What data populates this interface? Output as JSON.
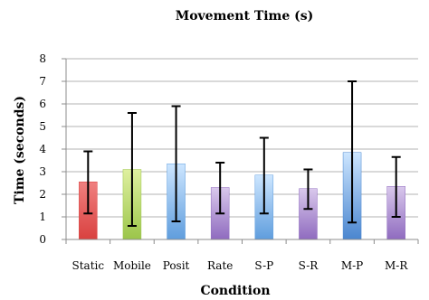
{
  "chart_data": {
    "type": "bar",
    "title": "Movement Time (s)",
    "xlabel": "Condition",
    "ylabel": "Time (seconds)",
    "ylim": [
      0,
      8
    ],
    "yticks": [
      0,
      1,
      2,
      3,
      4,
      5,
      6,
      7,
      8
    ],
    "grid": true,
    "categories": [
      "Static",
      "Mobile",
      "Posit",
      "Rate",
      "S-P",
      "S-R",
      "M-P",
      "M-R"
    ],
    "values": [
      2.55,
      3.1,
      3.35,
      2.3,
      2.85,
      2.25,
      3.85,
      2.35
    ],
    "error_low": [
      1.15,
      0.6,
      0.8,
      1.15,
      1.15,
      1.35,
      0.75,
      1.0
    ],
    "error_high": [
      3.9,
      5.6,
      5.9,
      3.4,
      4.5,
      3.1,
      7.0,
      3.65
    ],
    "colors": [
      [
        "#f08080",
        "#d9413f"
      ],
      [
        "#dff0a0",
        "#9bc54a"
      ],
      [
        "#cde6ff",
        "#5f9ddd"
      ],
      [
        "#d9c8ec",
        "#8f6bbf"
      ],
      [
        "#cde6ff",
        "#5f9ddd"
      ],
      [
        "#d9c8ec",
        "#8f6bbf"
      ],
      [
        "#cde6ff",
        "#4a86cf"
      ],
      [
        "#d9c8ec",
        "#8f6bbf"
      ]
    ]
  }
}
